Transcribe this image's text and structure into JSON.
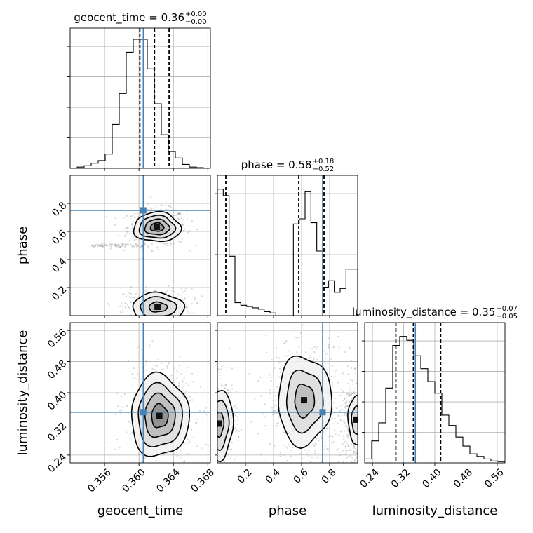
{
  "chart_data": {
    "type": "corner",
    "parameters": [
      {
        "name": "geocent_time",
        "label": "geocent_time",
        "title_main": "geocent_time = 0.36",
        "title_sup": "+0.00",
        "title_sub": "−0.00",
        "range": [
          0.352,
          0.3683
        ],
        "ticks": [
          0.356,
          0.36,
          0.364,
          0.368
        ],
        "tick_labels": [
          "0.356",
          "0.360",
          "0.364",
          "0.368"
        ],
        "quantiles": [
          0.3601,
          0.3618,
          0.3635
        ],
        "truth": 0.3605,
        "hist_edges": [
          0.352,
          0.3683
        ],
        "hist_counts": [
          0,
          0.01,
          0.02,
          0.04,
          0.06,
          0.11,
          0.34,
          0.58,
          0.9,
          1.0,
          1.0,
          0.77,
          0.5,
          0.26,
          0.13,
          0.08,
          0.03,
          0.01,
          0.005,
          0.0
        ]
      },
      {
        "name": "phase",
        "label": "phase",
        "title_main": "phase = 0.58",
        "title_sup": "+0.18",
        "title_sub": "−0.52",
        "range": [
          0.0,
          1.0
        ],
        "ticks": [
          0.2,
          0.4,
          0.6,
          0.8
        ],
        "tick_labels": [
          "0.2",
          "0.4",
          "0.6",
          "0.8"
        ],
        "quantiles": [
          0.06,
          0.58,
          0.76
        ],
        "truth": 0.75,
        "hist_edges": [
          0.0,
          1.0
        ],
        "hist_counts": [
          0.98,
          0.93,
          0.46,
          0.1,
          0.08,
          0.07,
          0.06,
          0.05,
          0.03,
          0.02,
          0.0,
          0.0,
          0.0,
          0.71,
          0.75,
          0.96,
          0.72,
          0.5,
          0.22,
          0.27,
          0.18,
          0.21,
          0.36,
          0.36
        ]
      },
      {
        "name": "luminosity_distance",
        "label": "luminosity_distance",
        "title_main": "luminosity_distance = 0.35",
        "title_sup": "+0.07",
        "title_sub": "−0.05",
        "range": [
          0.22,
          0.58
        ],
        "ticks": [
          0.24,
          0.32,
          0.4,
          0.48,
          0.56
        ],
        "tick_labels": [
          "0.24",
          "0.32",
          "0.40",
          "0.48",
          "0.56"
        ],
        "quantiles": [
          0.3,
          0.345,
          0.415
        ],
        "truth": 0.35,
        "hist_edges": [
          0.22,
          0.58
        ],
        "hist_counts": [
          0.03,
          0.17,
          0.31,
          0.58,
          0.91,
          0.98,
          0.95,
          0.83,
          0.73,
          0.63,
          0.54,
          0.37,
          0.29,
          0.2,
          0.13,
          0.07,
          0.05,
          0.03,
          0.015,
          0.01
        ]
      }
    ],
    "pairs": [
      {
        "x": "geocent_time",
        "y": "phase",
        "clusters": [
          {
            "cx": 0.3621,
            "cy": 0.63,
            "sx": 0.0013,
            "sy": 0.05,
            "levels": [
              0.3,
              0.55,
              0.8,
              1.05
            ]
          },
          {
            "cx": 0.3622,
            "cy": 0.06,
            "sx": 0.0015,
            "sy": 0.05,
            "levels": [
              0.35,
              0.7,
              1.0
            ]
          }
        ],
        "tail_y": 0.5
      },
      {
        "x": "geocent_time",
        "y": "luminosity_distance",
        "clusters": [
          {
            "cx": 0.3624,
            "cy": 0.34,
            "sx": 0.0016,
            "sy": 0.05,
            "levels": [
              0.3,
              0.55,
              0.8,
              1.05
            ]
          }
        ]
      },
      {
        "x": "phase",
        "y": "luminosity_distance",
        "clusters": [
          {
            "cx": 0.62,
            "cy": 0.38,
            "sx": 0.1,
            "sy": 0.06,
            "levels": [
              0.35,
              0.65,
              0.95
            ]
          },
          {
            "cx": 0.01,
            "cy": 0.32,
            "sx": 0.05,
            "sy": 0.045,
            "levels": [
              0.35,
              0.7,
              1.0
            ]
          },
          {
            "cx": 0.99,
            "cy": 0.33,
            "sx": 0.04,
            "sy": 0.045,
            "levels": [
              0.4,
              0.7
            ]
          }
        ]
      }
    ],
    "truth_color": "#4682b4",
    "grid": true
  }
}
